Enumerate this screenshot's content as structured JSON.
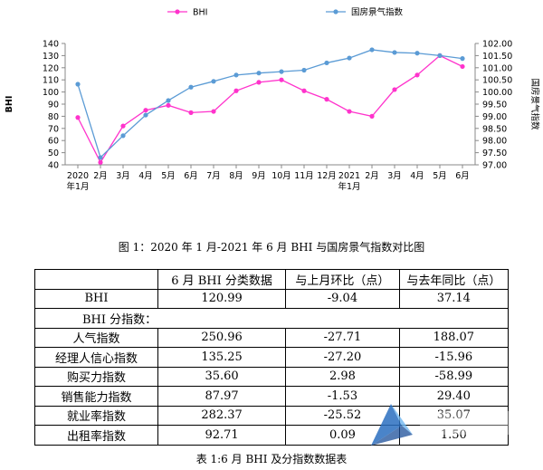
{
  "chart_data": {
    "type": "line",
    "x": [
      "2020\n年1月",
      "2月",
      "3月",
      "4月",
      "5月",
      "6月",
      "7月",
      "8月",
      "9月",
      "10月",
      "11月",
      "12月",
      "2021\n年1月",
      "2月",
      "3月",
      "4月",
      "5月",
      "6月"
    ],
    "series": [
      {
        "name": "BHI",
        "axis": "left",
        "color": "#ff33cc",
        "values": [
          79,
          42,
          72,
          85,
          89,
          83,
          84,
          101,
          108,
          110,
          101,
          94,
          84,
          80,
          102,
          114,
          130,
          121
        ]
      },
      {
        "name": "国房景气指数",
        "axis": "right",
        "color": "#5b9bd5",
        "values": [
          100.32,
          97.3,
          98.2,
          99.05,
          99.65,
          100.2,
          100.44,
          100.7,
          100.78,
          100.84,
          100.9,
          101.2,
          101.4,
          101.74,
          101.63,
          101.6,
          101.5,
          101.38
        ]
      }
    ],
    "ylabel_left": "BHI",
    "ylabel_right": "国房景气指数",
    "ylim_left": [
      40,
      140
    ],
    "yticks_left": [
      "140",
      "130",
      "120",
      "110",
      "100",
      "90",
      "80",
      "70",
      "60",
      "50",
      "40"
    ],
    "ylim_right": [
      97.0,
      102.0
    ],
    "yticks_right": [
      "102.00",
      "101.50",
      "101.00",
      "100.50",
      "100.00",
      "99.50",
      "99.00",
      "98.50",
      "98.00",
      "97.50",
      "97.00"
    ],
    "grid": false,
    "legend_position": "top"
  },
  "figure_caption": "图 1：2020 年 1 月-2021 年 6 月 BHI 与国房景气指数对比图",
  "table": {
    "headers": [
      "",
      "6 月 BHI 分类数据",
      "与上月环比（点）",
      "与去年同比（点）"
    ],
    "bhi_row": [
      "BHI",
      "120.99",
      "-9.04",
      "37.14"
    ],
    "group_label": "BHI 分指数：",
    "rows": [
      [
        "人气指数",
        "250.96",
        "-27.71",
        "188.07"
      ],
      [
        "经理人信心指数",
        "135.25",
        "-27.20",
        "-15.96"
      ],
      [
        "购买力指数",
        "35.60",
        "2.98",
        "-58.99"
      ],
      [
        "销售能力指数",
        "87.97",
        "-1.53",
        "29.40"
      ],
      [
        "就业率指数",
        "282.37",
        "-25.52",
        "35.07"
      ],
      [
        "出租率指数",
        "92.71",
        "0.09",
        "1.50"
      ]
    ]
  },
  "table_caption": "表 1:6 月 BHI 及分指数数据表"
}
